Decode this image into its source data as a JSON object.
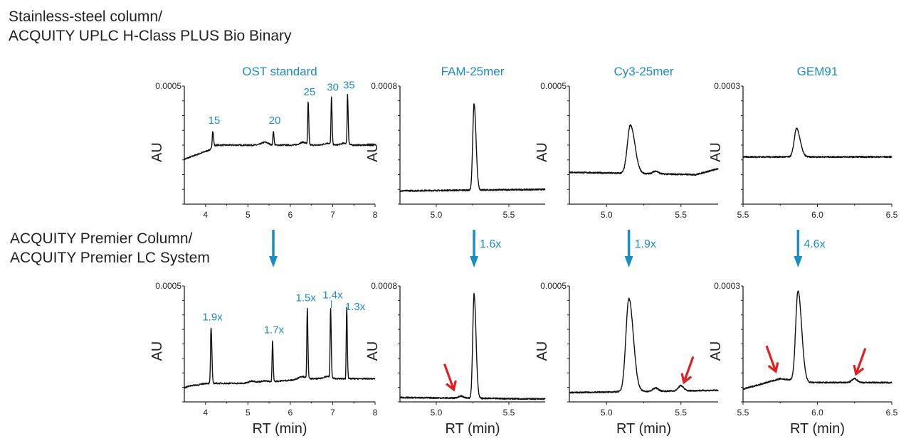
{
  "row_titles": {
    "top_line1": "Stainless-steel column/",
    "top_line2": "ACQUITY UPLC H-Class PLUS Bio Binary",
    "bottom_line1": "ACQUITY Premier Column/",
    "bottom_line2": "ACQUITY Premier LC System"
  },
  "colors": {
    "accent": "#1b8cc4",
    "trace": "#111111",
    "impurity_arrow": "#e02020",
    "axis": "#222222"
  },
  "chart_data": [
    {
      "type": "line",
      "id": "ost-top",
      "title": "OST standard",
      "row": "top",
      "ylabel": "AU",
      "xlabel": "",
      "y_top_label": "0.0005",
      "ylim": [
        0,
        0.0005
      ],
      "xlim": [
        3.5,
        8
      ],
      "xticks": [
        "4",
        "5",
        "6",
        "7",
        "8"
      ],
      "xtick_values": [
        4,
        5,
        6,
        7,
        8
      ],
      "baseline": [
        [
          3.5,
          0.00019
        ],
        [
          4.1,
          0.00023
        ],
        [
          4.25,
          0.00025
        ],
        [
          8,
          0.00025
        ]
      ],
      "peaks": [
        {
          "rt": 4.17,
          "height": 0.00031,
          "width": 0.025,
          "label": "15"
        },
        {
          "rt": 5.6,
          "height": 0.00031,
          "width": 0.02,
          "label": "20"
        },
        {
          "rt": 6.42,
          "height": 0.00043,
          "width": 0.02,
          "label": "25"
        },
        {
          "rt": 6.97,
          "height": 0.00045,
          "width": 0.02,
          "label": "30"
        },
        {
          "rt": 7.35,
          "height": 0.00046,
          "width": 0.02,
          "label": "35"
        }
      ],
      "minor_peaks": [
        [
          5.4,
          0.000262
        ],
        [
          6.3,
          0.000262
        ],
        [
          6.88,
          0.000258
        ],
        [
          7.28,
          0.000258
        ]
      ]
    },
    {
      "type": "line",
      "id": "fam-top",
      "title": "FAM-25mer",
      "row": "top",
      "ylabel": "AU",
      "xlabel": "",
      "y_top_label": "0.0008",
      "ylim": [
        0,
        0.0008
      ],
      "xlim": [
        4.75,
        5.75
      ],
      "xticks": [
        "5.0",
        "5.5"
      ],
      "xtick_values": [
        5.0,
        5.5
      ],
      "baseline": [
        [
          4.75,
          9e-05
        ],
        [
          5.75,
          0.0001
        ]
      ],
      "peaks": [
        {
          "rt": 5.26,
          "height": 0.00068,
          "width": 0.018
        }
      ],
      "minor_peaks": []
    },
    {
      "type": "line",
      "id": "cy3-top",
      "title": "Cy3-25mer",
      "row": "top",
      "ylabel": "AU",
      "xlabel": "",
      "y_top_label": "0.0005",
      "ylim": [
        0,
        0.0005
      ],
      "xlim": [
        4.75,
        5.75
      ],
      "xticks": [
        "5.0",
        "5.5"
      ],
      "xtick_values": [
        5.0,
        5.5
      ],
      "baseline": [
        [
          4.75,
          0.000135
        ],
        [
          5.6,
          0.000125
        ],
        [
          5.75,
          0.00015
        ]
      ],
      "peaks": [
        {
          "rt": 5.16,
          "height": 0.000335,
          "width": 0.04
        }
      ],
      "minor_peaks": [
        [
          5.33,
          0.00014
        ]
      ]
    },
    {
      "type": "line",
      "id": "gem91-top",
      "title": "GEM91",
      "row": "top",
      "ylabel": "AU",
      "xlabel": "",
      "y_top_label": "0.0003",
      "ylim": [
        0,
        0.0003
      ],
      "xlim": [
        5.5,
        6.5
      ],
      "xticks": [
        "5.5",
        "6.0",
        "6.5"
      ],
      "xtick_values": [
        5.5,
        6.0,
        6.5
      ],
      "baseline": [
        [
          5.5,
          0.00012
        ],
        [
          6.5,
          0.00012
        ]
      ],
      "peaks": [
        {
          "rt": 5.86,
          "height": 0.000192,
          "width": 0.032
        }
      ],
      "minor_peaks": []
    },
    {
      "type": "line",
      "id": "ost-bottom",
      "title": "",
      "row": "bottom",
      "ylabel": "AU",
      "xlabel": "RT (min)",
      "y_top_label": "0.0005",
      "ylim": [
        0,
        0.0005
      ],
      "xlim": [
        3.5,
        8
      ],
      "xticks": [
        "4",
        "5",
        "6",
        "7",
        "8"
      ],
      "xtick_values": [
        4,
        5,
        6,
        7,
        8
      ],
      "baseline": [
        [
          3.5,
          6e-05
        ],
        [
          4.0,
          8e-05
        ],
        [
          5.0,
          8e-05
        ],
        [
          6.5,
          0.0001
        ],
        [
          8,
          0.0001
        ]
      ],
      "peaks": [
        {
          "rt": 4.13,
          "height": 0.00032,
          "width": 0.025,
          "label": "1.9x"
        },
        {
          "rt": 5.58,
          "height": 0.000265,
          "width": 0.02,
          "label": "1.7x"
        },
        {
          "rt": 6.4,
          "height": 0.000403,
          "width": 0.02,
          "label": "1.5x"
        },
        {
          "rt": 6.95,
          "height": 0.000398,
          "width": 0.02,
          "label": "1.4x"
        },
        {
          "rt": 7.33,
          "height": 0.000408,
          "width": 0.02,
          "label": "1.3x"
        }
      ],
      "minor_peaks": [
        [
          3.65,
          7e-05
        ],
        [
          5.1,
          9e-05
        ],
        [
          5.37,
          9e-05
        ],
        [
          6.27,
          0.00011
        ],
        [
          6.87,
          0.00011
        ]
      ]
    },
    {
      "type": "line",
      "id": "fam-bottom",
      "title": "",
      "row": "bottom",
      "ylabel": "AU",
      "xlabel": "RT (min)",
      "y_top_label": "0.0008",
      "ylim": [
        0,
        0.0008
      ],
      "xlim": [
        4.75,
        5.75
      ],
      "xticks": [
        "5.0",
        "5.5"
      ],
      "xtick_values": [
        5.0,
        5.5
      ],
      "baseline": [
        [
          4.75,
          3e-05
        ],
        [
          5.75,
          2e-05
        ]
      ],
      "peaks": [
        {
          "rt": 5.26,
          "height": 0.000745,
          "width": 0.018
        }
      ],
      "minor_peaks": [
        [
          5.17,
          4e-05
        ]
      ],
      "fold_change": "1.6x",
      "fold_arrow_rt": 5.26,
      "impurity_arrows": [
        {
          "rt": 5.12
        }
      ]
    },
    {
      "type": "line",
      "id": "cy3-bottom",
      "title": "",
      "row": "bottom",
      "ylabel": "AU",
      "xlabel": "RT (min)",
      "y_top_label": "0.0005",
      "ylim": [
        0,
        0.0005
      ],
      "xlim": [
        4.75,
        5.75
      ],
      "xticks": [
        "5.0",
        "5.5"
      ],
      "xtick_values": [
        5.0,
        5.5
      ],
      "baseline": [
        [
          4.75,
          4e-05
        ],
        [
          5.75,
          5e-05
        ]
      ],
      "peaks": [
        {
          "rt": 5.15,
          "height": 0.000445,
          "width": 0.04
        }
      ],
      "minor_peaks": [
        [
          5.33,
          6e-05
        ],
        [
          5.5,
          7e-05
        ]
      ],
      "fold_change": "1.9x",
      "fold_arrow_rt": 5.15,
      "impurity_arrows": [
        {
          "rt": 5.52
        }
      ]
    },
    {
      "type": "line",
      "id": "gem91-bottom",
      "title": "",
      "row": "bottom",
      "ylabel": "AU",
      "xlabel": "RT (min)",
      "y_top_label": "0.0003",
      "ylim": [
        0,
        0.0003
      ],
      "xlim": [
        5.5,
        6.5
      ],
      "xticks": [
        "5.5",
        "6.0",
        "6.5"
      ],
      "xtick_values": [
        5.5,
        6.0,
        6.5
      ],
      "baseline": [
        [
          5.5,
          3.3e-05
        ],
        [
          5.75,
          6e-05
        ],
        [
          5.95,
          5e-05
        ],
        [
          6.5,
          5e-05
        ]
      ],
      "peaks": [
        {
          "rt": 5.87,
          "height": 0.000287,
          "width": 0.032
        }
      ],
      "minor_peaks": [
        [
          6.25,
          6e-05
        ]
      ],
      "fold_change": "4.6x",
      "fold_arrow_rt": 5.87,
      "impurity_arrows": [
        {
          "rt": 5.72
        },
        {
          "rt": 6.26
        }
      ]
    }
  ],
  "ost_transition_arrow": true
}
